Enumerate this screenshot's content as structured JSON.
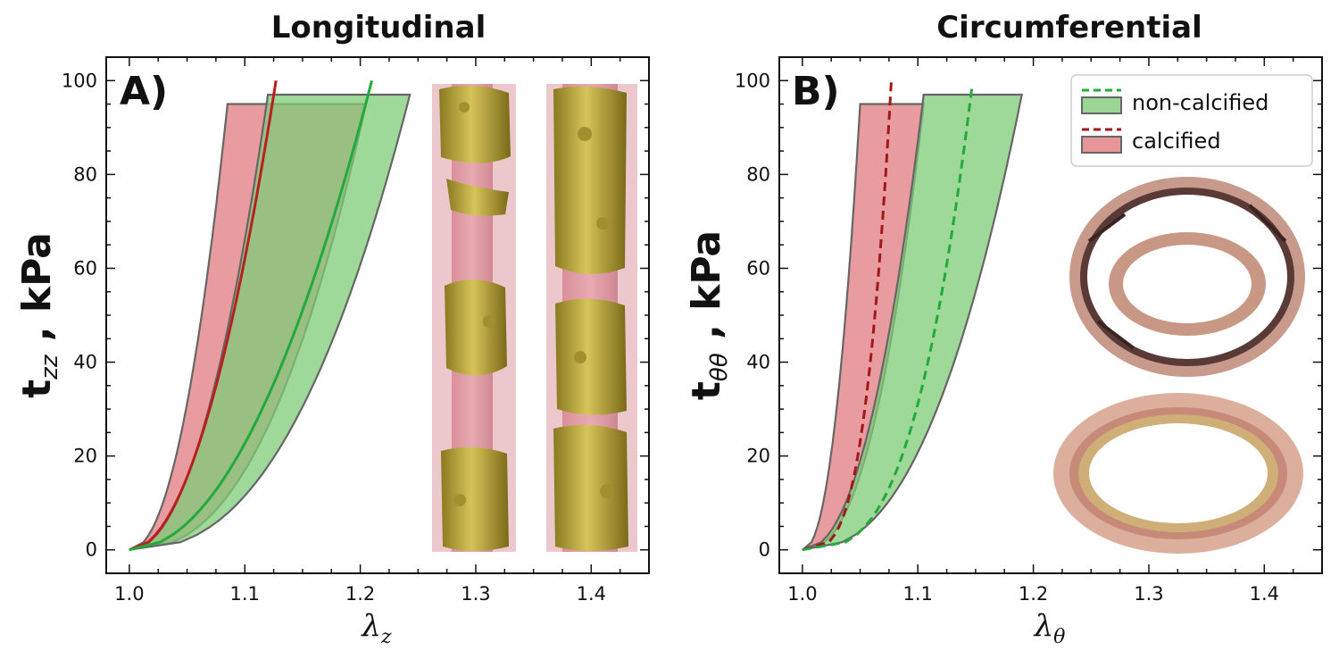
{
  "chart_data": [
    {
      "type": "line",
      "panel_label": "A)",
      "title": "Longitudinal",
      "ylabel_main": "t",
      "ylabel_sub": "zz",
      "ylabel_unit": " , kPa",
      "xlabel_main": "λ",
      "xlabel_sub": "z",
      "xlim": [
        0.98,
        1.45
      ],
      "ylim": [
        -5,
        105
      ],
      "xticks": [
        "1.0",
        "1.1",
        "1.2",
        "1.3",
        "1.4"
      ],
      "xtick_values": [
        1.0,
        1.1,
        1.2,
        1.3,
        1.4
      ],
      "yticks": [
        "0",
        "20",
        "40",
        "60",
        "80",
        "100"
      ],
      "ytick_values": [
        0,
        20,
        40,
        60,
        80,
        100
      ],
      "series": [
        {
          "group": "calcified",
          "kind": "mean_line",
          "style": "solid",
          "color": "#b82020",
          "stretch_max": 1.127,
          "stress_max": 100,
          "exponent": 2.0
        },
        {
          "group": "non-calcified",
          "kind": "mean_line",
          "style": "solid",
          "color": "#22aa3a",
          "stretch_max": 1.21,
          "stress_max": 100,
          "exponent": 2.0
        },
        {
          "group": "calcified",
          "kind": "band",
          "color": "#e07b80",
          "stress_top": 95,
          "stretch_low_at_top": 1.085,
          "stretch_high_at_top": 1.205,
          "exp_low": 2.1,
          "exp_high": 2.4
        },
        {
          "group": "non-calcified",
          "kind": "band",
          "color": "#7fcc78",
          "stress_top": 97,
          "stretch_low_at_top": 1.12,
          "stretch_high_at_top": 1.243,
          "exp_low": 2.1,
          "exp_high": 2.4
        }
      ]
    },
    {
      "type": "line",
      "panel_label": "B)",
      "title": "Circumferential",
      "ylabel_main": "t",
      "ylabel_sub": "θθ",
      "ylabel_unit": " , kPa",
      "xlabel_main": "λ",
      "xlabel_sub": "θ",
      "xlim": [
        0.98,
        1.45
      ],
      "ylim": [
        -5,
        105
      ],
      "xticks": [
        "1.0",
        "1.1",
        "1.2",
        "1.3",
        "1.4"
      ],
      "xtick_values": [
        1.0,
        1.1,
        1.2,
        1.3,
        1.4
      ],
      "yticks": [
        "0",
        "20",
        "40",
        "60",
        "80",
        "100"
      ],
      "ytick_values": [
        0,
        20,
        40,
        60,
        80,
        100
      ],
      "legend": {
        "placement": "top-right",
        "entries": [
          {
            "label": "non-calcified",
            "line_color": "#22aa3a",
            "patch_color": "#7fcc78"
          },
          {
            "label": "calcified",
            "line_color": "#a01818",
            "patch_color": "#e07b80"
          }
        ]
      },
      "series": [
        {
          "group": "calcified",
          "kind": "mean_line",
          "style": "dashed",
          "color": "#a01818",
          "stretch_max": 1.077,
          "stress_max": 100,
          "exponent": 3.4
        },
        {
          "group": "non-calcified",
          "kind": "mean_line",
          "style": "dashed",
          "color": "#22aa3a",
          "stretch_max": 1.147,
          "stress_max": 99,
          "exponent": 3.0
        },
        {
          "group": "calcified",
          "kind": "band",
          "color": "#e07b80",
          "stress_top": 95,
          "stretch_low_at_top": 1.05,
          "stretch_high_at_top": 1.105,
          "exp_low": 2.2,
          "exp_high": 2.4
        },
        {
          "group": "non-calcified",
          "kind": "band",
          "color": "#7fcc78",
          "stress_top": 97,
          "stretch_low_at_top": 1.105,
          "stretch_high_at_top": 1.19,
          "exp_low": 2.2,
          "exp_high": 2.4
        }
      ]
    }
  ],
  "insets": {
    "panel_a": [
      "3d-vessel-reconstruction",
      "3d-vessel-reconstruction"
    ],
    "panel_b": [
      "histology-cross-section-calcified",
      "histology-cross-section-non-calcified"
    ]
  }
}
